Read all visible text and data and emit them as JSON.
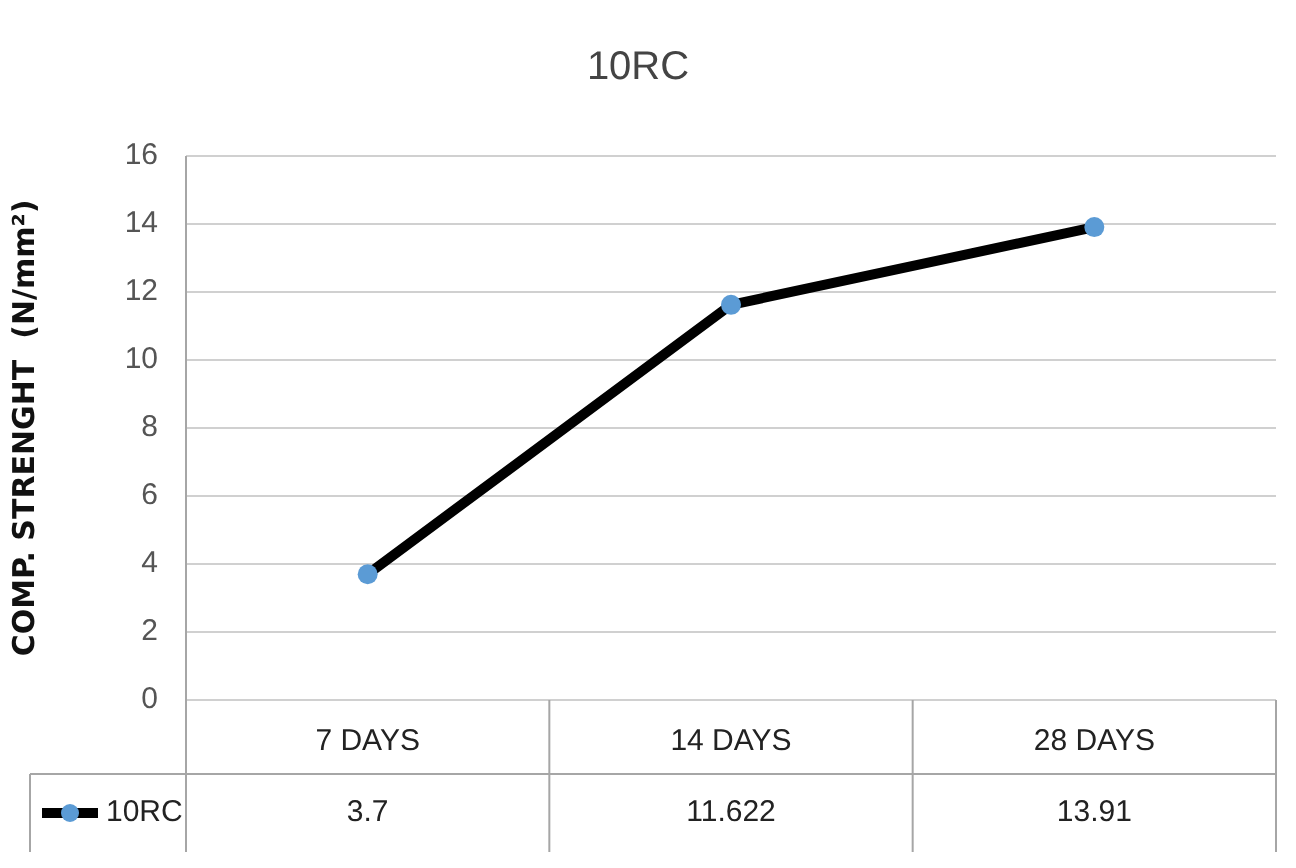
{
  "chart_data": {
    "type": "line",
    "title": "10RC",
    "ylabel": "COMP. STRENGHT  (N/mm²)",
    "categories": [
      "7 DAYS",
      "14 DAYS",
      "28 DAYS"
    ],
    "series": [
      {
        "name": "10RC",
        "color": "#000000",
        "colors": [
          "#5b9bd5",
          "#5b9bd5",
          "#5b9bd5"
        ],
        "values": [
          3.7,
          11.622,
          13.91
        ]
      }
    ],
    "ylim": [
      0,
      16
    ],
    "yticks": [
      0,
      2,
      4,
      6,
      8,
      10,
      12,
      14,
      16
    ],
    "grid": "y",
    "marker": "circle",
    "line_style": "solid",
    "data_labels": true,
    "legend": "bottom"
  }
}
